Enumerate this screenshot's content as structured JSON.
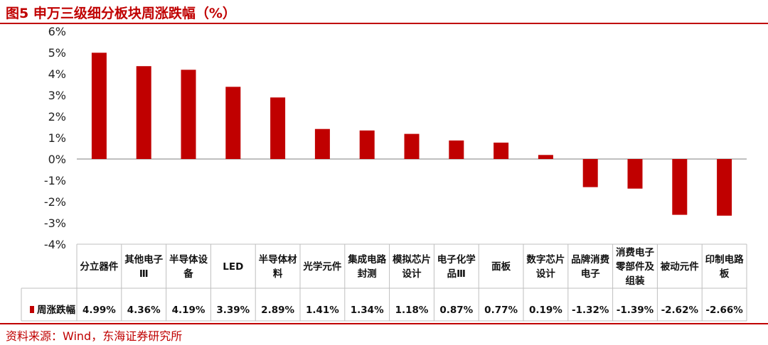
{
  "figure": {
    "title": "图5  申万三级细分板块周涨跌幅（%）",
    "source": "资料来源：Wind，东海证券研究所"
  },
  "colors": {
    "bar": "#c00000",
    "accent": "#c00000",
    "grid": "#bfbfbf",
    "axis": "#7f7f7f"
  },
  "chart_data": {
    "type": "bar",
    "title": "",
    "xlabel": "",
    "ylabel": "",
    "categories": [
      [
        "分立器件"
      ],
      [
        "其他电子",
        "Ⅲ"
      ],
      [
        "半导体设",
        "备"
      ],
      [
        "LED"
      ],
      [
        "半导体材",
        "料"
      ],
      [
        "光学元件"
      ],
      [
        "集成电路",
        "封测"
      ],
      [
        "模拟芯片",
        "设计"
      ],
      [
        "电子化学",
        "品Ⅲ"
      ],
      [
        "面板"
      ],
      [
        "数字芯片",
        "设计"
      ],
      [
        "品牌消费",
        "电子"
      ],
      [
        "消费电子",
        "零部件及",
        "组装"
      ],
      [
        "被动元件"
      ],
      [
        "印制电路",
        "板"
      ]
    ],
    "series": [
      {
        "name": "周涨跌幅",
        "values": [
          4.99,
          4.36,
          4.19,
          3.39,
          2.89,
          1.41,
          1.34,
          1.18,
          0.87,
          0.77,
          0.19,
          -1.32,
          -1.39,
          -2.62,
          -2.66
        ],
        "labels": [
          "4.99%",
          "4.36%",
          "4.19%",
          "3.39%",
          "2.89%",
          "1.41%",
          "1.34%",
          "1.18%",
          "0.87%",
          "0.77%",
          "0.19%",
          "-1.32%",
          "-1.39%",
          "-2.62%",
          "-2.66%"
        ]
      }
    ],
    "ylim": [
      -4,
      6
    ],
    "yticks": [
      6,
      5,
      4,
      3,
      2,
      1,
      0,
      -1,
      -2,
      -3,
      -4
    ],
    "ytick_labels": [
      "6%",
      "5%",
      "4%",
      "3%",
      "2%",
      "1%",
      "0%",
      "-1%",
      "-2%",
      "-3%",
      "-4%"
    ],
    "grid": false,
    "legend": "data-table-left"
  }
}
